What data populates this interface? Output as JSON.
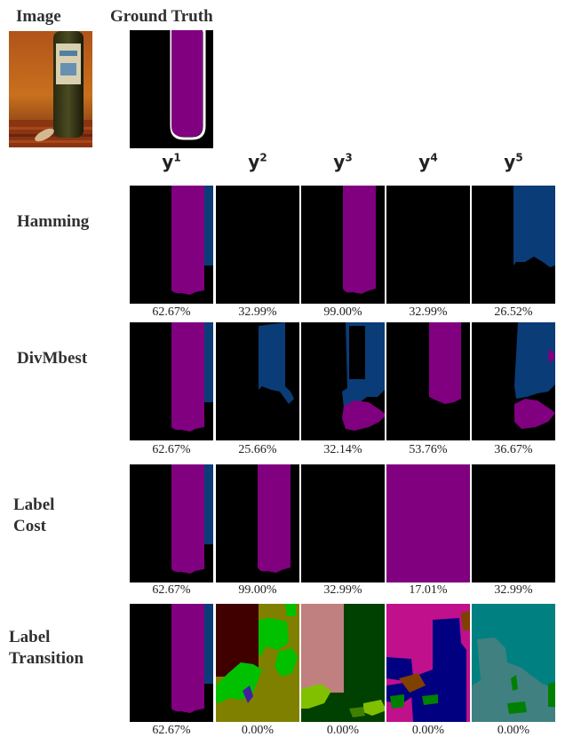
{
  "headers": {
    "image": "Image",
    "ground_truth": "Ground Truth"
  },
  "columns": [
    {
      "base": "y",
      "sup": "1"
    },
    {
      "base": "y",
      "sup": "2"
    },
    {
      "base": "y",
      "sup": "3"
    },
    {
      "base": "y",
      "sup": "4"
    },
    {
      "base": "y",
      "sup": "5"
    }
  ],
  "rows": [
    {
      "label_lines": [
        "Hamming"
      ],
      "scores": [
        "62.67%",
        "32.99%",
        "99.00%",
        "32.99%",
        "26.52%"
      ]
    },
    {
      "label_lines": [
        "DivMbest"
      ],
      "scores": [
        "62.67%",
        "25.66%",
        "32.14%",
        "53.76%",
        "36.67%"
      ]
    },
    {
      "label_lines": [
        "Label",
        "Cost"
      ],
      "scores": [
        "62.67%",
        "99.00%",
        "32.99%",
        "17.01%",
        "32.99%"
      ]
    },
    {
      "label_lines": [
        "Label",
        "Transition"
      ],
      "scores": [
        "62.67%",
        "0.00%",
        "0.00%",
        "0.00%",
        "0.00%"
      ]
    }
  ],
  "colors": {
    "background": "#000000",
    "bottle": "#800080",
    "blue": "#0a3c78",
    "magenta": "#c0108c",
    "teal": "#008080",
    "olive": "#808000",
    "dark_green": "#004000",
    "pink": "#c08080",
    "lime": "#80c000",
    "bright_green": "#00c000",
    "dark_red": "#400000",
    "navy": "#000080",
    "brown": "#804000",
    "slate_teal": "#408080"
  }
}
